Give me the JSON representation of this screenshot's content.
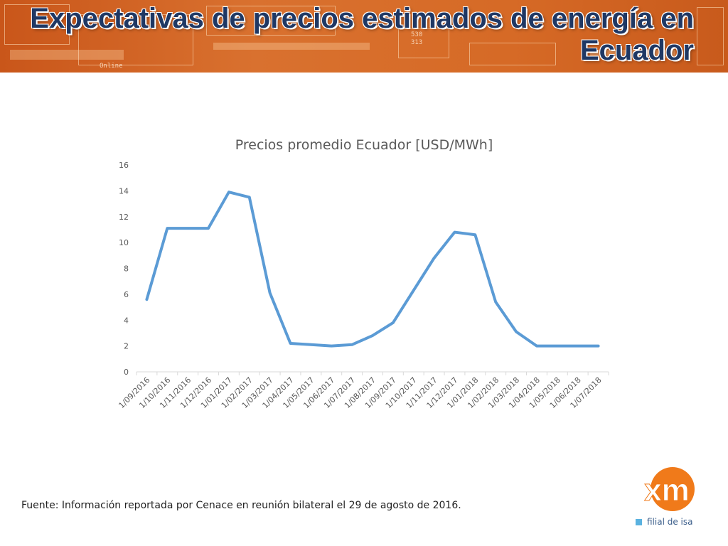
{
  "slide": {
    "title": "Expectativas de precios estimados de energía en Ecuador",
    "source_note": "Fuente: Información reportada por Cenace en reunión bilateral el 29 de agosto de 2016.",
    "banner_color": "#d66a26",
    "title_color": "#1f3864",
    "banner_screen_text": [
      "530",
      "313",
      "Online"
    ]
  },
  "logo": {
    "mark": "xm",
    "tagline": "filial de isa",
    "mark_color": "#f07a1a",
    "tagline_color": "#3a5d8a",
    "square_color": "#5ab2e0"
  },
  "chart_data": {
    "type": "line",
    "title": "Precios promedio Ecuador [USD/MWh]",
    "xlabel": "",
    "ylabel": "",
    "categories": [
      "1/09/2016",
      "1/10/2016",
      "1/11/2016",
      "1/12/2016",
      "1/01/2017",
      "1/02/2017",
      "1/03/2017",
      "1/04/2017",
      "1/05/2017",
      "1/06/2017",
      "1/07/2017",
      "1/08/2017",
      "1/09/2017",
      "1/10/2017",
      "1/11/2017",
      "1/12/2017",
      "1/01/2018",
      "1/02/2018",
      "1/03/2018",
      "1/04/2018",
      "1/05/2018",
      "1/06/2018",
      "1/07/2018"
    ],
    "series": [
      {
        "values": [
          5.6,
          11.1,
          11.1,
          11.1,
          13.9,
          13.5,
          6.1,
          2.2,
          2.1,
          2.0,
          2.1,
          2.8,
          3.8,
          6.3,
          8.8,
          10.8,
          10.6,
          5.4,
          3.1,
          2.0,
          2.0,
          2.0,
          2.0
        ],
        "color": "#5b9bd5"
      }
    ],
    "ylim": [
      0,
      16
    ],
    "yticks": [
      0,
      2,
      4,
      6,
      8,
      10,
      12,
      14,
      16
    ],
    "grid": false,
    "legend": "none"
  }
}
